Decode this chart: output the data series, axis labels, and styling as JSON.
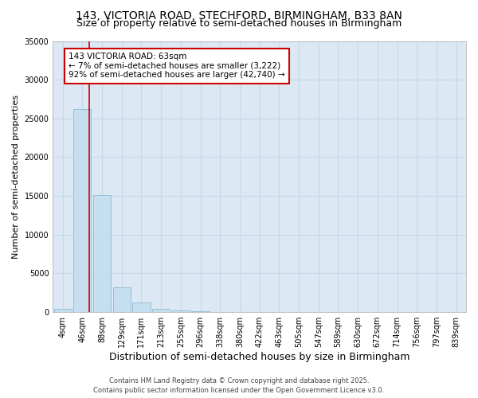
{
  "title": "143, VICTORIA ROAD, STECHFORD, BIRMINGHAM, B33 8AN",
  "subtitle": "Size of property relative to semi-detached houses in Birmingham",
  "xlabel": "Distribution of semi-detached houses by size in Birmingham",
  "ylabel": "Number of semi-detached properties",
  "bar_labels": [
    "4sqm",
    "46sqm",
    "88sqm",
    "129sqm",
    "171sqm",
    "213sqm",
    "255sqm",
    "296sqm",
    "338sqm",
    "380sqm",
    "422sqm",
    "463sqm",
    "505sqm",
    "547sqm",
    "589sqm",
    "630sqm",
    "672sqm",
    "714sqm",
    "756sqm",
    "797sqm",
    "839sqm"
  ],
  "bar_values": [
    400,
    26200,
    15100,
    3200,
    1200,
    450,
    200,
    90,
    20,
    8,
    4,
    2,
    1,
    1,
    0,
    0,
    0,
    0,
    0,
    0,
    0
  ],
  "bar_color": "#c5dff0",
  "bar_edge_color": "#90b8d0",
  "grid_color": "#c8d8e8",
  "background_color": "#dce8f4",
  "red_line_color": "#cc0000",
  "red_line_x": 1.35,
  "annotation_title": "143 VICTORIA ROAD: 63sqm",
  "annotation_line1": "← 7% of semi-detached houses are smaller (3,222)",
  "annotation_line2": "92% of semi-detached houses are larger (42,740) →",
  "annotation_box_color": "#ffffff",
  "annotation_border_color": "#cc0000",
  "ylim": [
    0,
    35000
  ],
  "yticks": [
    0,
    5000,
    10000,
    15000,
    20000,
    25000,
    30000,
    35000
  ],
  "footer1": "Contains HM Land Registry data © Crown copyright and database right 2025.",
  "footer2": "Contains public sector information licensed under the Open Government Licence v3.0.",
  "title_fontsize": 10,
  "subtitle_fontsize": 9,
  "tick_fontsize": 7,
  "ylabel_fontsize": 8,
  "xlabel_fontsize": 9,
  "annotation_fontsize": 7.5,
  "footer_fontsize": 6
}
